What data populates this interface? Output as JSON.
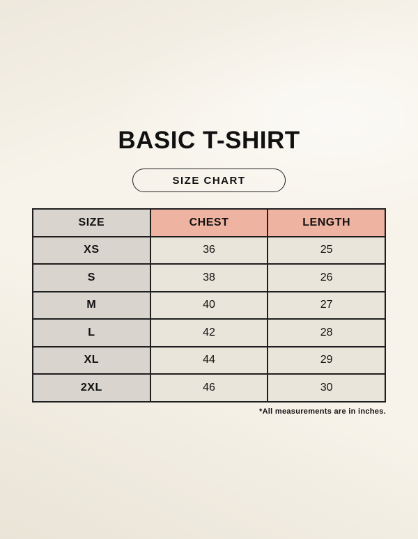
{
  "title": "BASIC T-SHIRT",
  "badge_label": "SIZE CHART",
  "footnote": "*All measurements are in inches.",
  "colors": {
    "background": "#f7f3ea",
    "size_column_bg": "#d9d4cd",
    "header_accent_bg": "#efb3a2",
    "data_cell_bg": "#eae5da",
    "border": "#1f1f1f",
    "text": "#111111"
  },
  "chart_data": {
    "type": "table",
    "title": "BASIC T-SHIRT — SIZE CHART",
    "columns": [
      "SIZE",
      "CHEST",
      "LENGTH"
    ],
    "rows": [
      [
        "XS",
        "36",
        "25"
      ],
      [
        "S",
        "38",
        "26"
      ],
      [
        "M",
        "40",
        "27"
      ],
      [
        "L",
        "42",
        "28"
      ],
      [
        "XL",
        "44",
        "29"
      ],
      [
        "2XL",
        "46",
        "30"
      ]
    ],
    "units": "inches"
  }
}
